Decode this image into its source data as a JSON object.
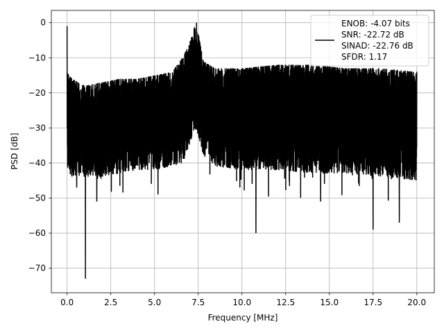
{
  "chart_data": {
    "type": "line",
    "title": "",
    "xlabel": "Frequency [MHz]",
    "ylabel": "PSD [dB]",
    "xlim": [
      -0.9,
      21.0
    ],
    "ylim": [
      -77,
      3.5
    ],
    "x_ticks": [
      0.0,
      2.5,
      5.0,
      7.5,
      10.0,
      12.5,
      15.0,
      17.5,
      20.0
    ],
    "x_tick_labels": [
      "0.0",
      "2.5",
      "5.0",
      "7.5",
      "10.0",
      "12.5",
      "15.0",
      "17.5",
      "20.0"
    ],
    "y_ticks": [
      0,
      -10,
      -20,
      -30,
      -40,
      -50,
      -60,
      -70
    ],
    "y_tick_labels": [
      "0",
      "−10",
      "−20",
      "−30",
      "−40",
      "−50",
      "−60",
      "−70"
    ],
    "grid": true,
    "legend_position": "top-right",
    "legend_lines": [
      "ENOB: -4.07 bits",
      "SNR: -22.72 dB",
      "SINAD: -22.76 dB",
      "SFDR: 1.17"
    ],
    "series": [
      {
        "color": "#000000",
        "description": "dense noisy power spectral density trace, approx. -15 dB upper envelope and -40 dB lower envelope",
        "x_range": [
          0,
          20
        ],
        "features": [
          {
            "x": 0.0,
            "y": -1
          },
          {
            "x": 7.4,
            "y": 0
          },
          {
            "x": 1.05,
            "y": -73
          },
          {
            "x": 10.8,
            "y": -60
          },
          {
            "x": 17.5,
            "y": -59
          },
          {
            "x": 0.55,
            "y": -47
          },
          {
            "x": 1.7,
            "y": -51
          },
          {
            "x": 5.2,
            "y": -49
          },
          {
            "x": 14.5,
            "y": -51
          },
          {
            "x": 19.0,
            "y": -57
          }
        ],
        "envelope": {
          "x": [
            0.0,
            0.3,
            1.0,
            2.0,
            3.0,
            4.0,
            5.0,
            6.0,
            6.6,
            7.0,
            7.3,
            7.5,
            7.8,
            8.5,
            10.0,
            12.0,
            14.0,
            16.0,
            18.0,
            20.0
          ],
          "upper": [
            -14,
            -16,
            -18,
            -17,
            -16,
            -16,
            -15,
            -14,
            -10,
            -6,
            -1,
            -3,
            -11,
            -13,
            -13,
            -12,
            -12,
            -13,
            -13,
            -14
          ],
          "lower": [
            -42,
            -44,
            -44,
            -44,
            -43,
            -42,
            -42,
            -41,
            -40,
            -35,
            -30,
            -32,
            -38,
            -41,
            -42,
            -42,
            -43,
            -43,
            -44,
            -45
          ]
        }
      }
    ]
  }
}
